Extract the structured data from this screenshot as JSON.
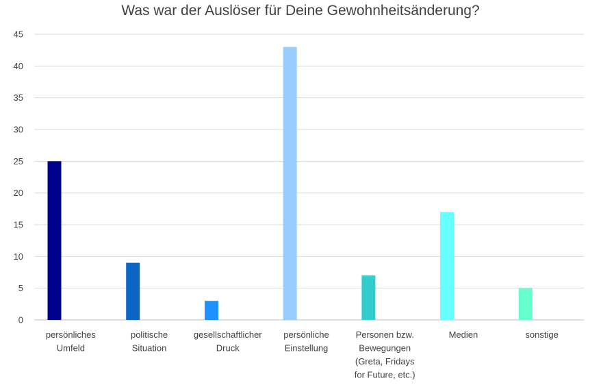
{
  "chart_data": {
    "type": "bar",
    "title": "Was war der Auslöser für Deine Gewohnheitsänderung?",
    "xlabel": "",
    "ylabel": "",
    "ylim": [
      0,
      45
    ],
    "y_ticks": [
      "0",
      "5",
      "10",
      "15",
      "20",
      "25",
      "30",
      "35",
      "40",
      "45"
    ],
    "grid": true,
    "categories": [
      [
        "persönliches",
        "Umfeld"
      ],
      [
        "politische",
        "Situation"
      ],
      [
        "gesellschaftlicher",
        "Druck"
      ],
      [
        "persönliche",
        "Einstellung"
      ],
      [
        "Personen bzw.",
        "Bewegungen",
        "(Greta, Fridays",
        "for Future, etc.)"
      ],
      [
        "Medien"
      ],
      [
        "sonstige"
      ]
    ],
    "values": [
      25,
      9,
      3,
      43,
      7,
      17,
      5
    ],
    "colors": [
      "#00008b",
      "#0a66c2",
      "#1e90ff",
      "#99ccff",
      "#33cccc",
      "#66ffff",
      "#66ffcc"
    ]
  }
}
